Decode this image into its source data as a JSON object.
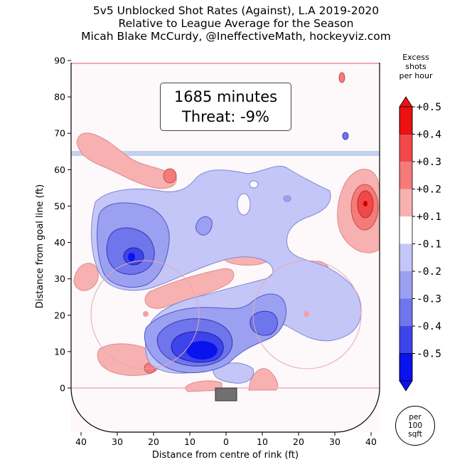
{
  "header": {
    "title_line1": "5v5 Unblocked Shot Rates (Against), L.A 2019-2020",
    "title_line2": "Relative to League Average for the Season",
    "title_line3": "Micah Blake McCurdy, @IneffectiveMath, hockeyviz.com"
  },
  "annotation": {
    "minutes": "1685 minutes",
    "threat": "Threat: -9%"
  },
  "colorbar": {
    "title_lines": [
      "Excess",
      "shots",
      "per hour"
    ],
    "tick_labels": [
      "+0.5",
      "+0.4",
      "+0.3",
      "+0.2",
      "+0.1",
      "-0.1",
      "-0.2",
      "-0.3",
      "-0.4",
      "-0.5"
    ],
    "colors": [
      "#ee1111",
      "#f24848",
      "#f57a7a",
      "#f8b1b1",
      "#ffffff",
      "#c3c6f6",
      "#9ba0f0",
      "#6f76ec",
      "#3c44ea",
      "#0a12ee"
    ]
  },
  "badge": {
    "line1": "per",
    "line2": "100",
    "line3": "sqft"
  },
  "chart_data": {
    "type": "heatmap",
    "xlabel": "Distance from centre of rink (ft)",
    "ylabel": "Distance from goal line (ft)",
    "xlim": [
      42,
      -42
    ],
    "ylim": [
      -11,
      90
    ],
    "x_ticks": [
      40,
      30,
      20,
      10,
      0,
      10,
      20,
      30,
      40
    ],
    "y_ticks": [
      0,
      10,
      20,
      30,
      40,
      50,
      60,
      70,
      80,
      90
    ],
    "colorbar_range": [
      -0.5,
      0.5
    ],
    "colorbar_unit": "Excess shots per hour, per 100 sqft",
    "regions": [
      {
        "sign": "against",
        "label": "largest deficit, slot left of net",
        "x": 7,
        "y": 10,
        "value": -0.5
      },
      {
        "sign": "against",
        "label": "left point deficit",
        "x": 26,
        "y": 36,
        "value": -0.4
      },
      {
        "sign": "against",
        "label": "right circle deficit",
        "x": -10,
        "y": 18,
        "value": -0.3
      },
      {
        "sign": "for",
        "label": "right point excess",
        "x": -38,
        "y": 50,
        "value": 0.4
      },
      {
        "sign": "for",
        "label": "left wall excess",
        "x": 38,
        "y": 66,
        "value": 0.1
      },
      {
        "sign": "for",
        "label": "high slot excess",
        "x": 15,
        "y": 27,
        "value": 0.1
      },
      {
        "sign": "for",
        "label": "left hash excess",
        "x": 22,
        "y": 5,
        "value": 0.2
      },
      {
        "sign": "for",
        "label": "near net right excess",
        "x": -9,
        "y": 2,
        "value": 0.1
      }
    ]
  }
}
